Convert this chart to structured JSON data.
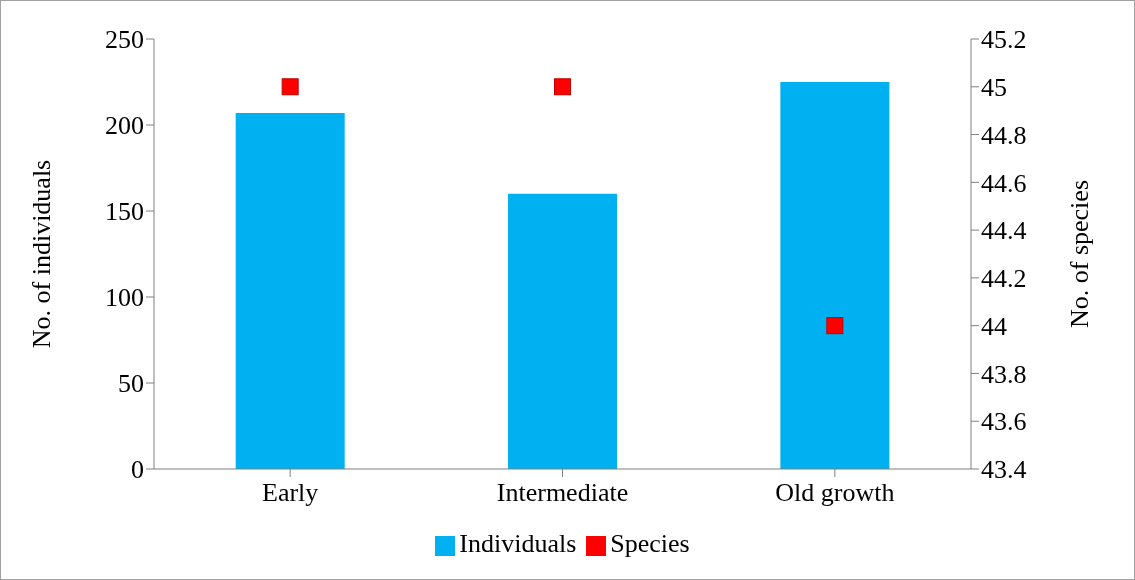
{
  "chart_data": {
    "type": "bar",
    "categories": [
      "Early",
      "Intermediate",
      "Old growth"
    ],
    "series": [
      {
        "name": "Individuals",
        "color": "#00b0f0",
        "values": [
          207,
          160,
          225
        ]
      },
      {
        "name": "Species",
        "type": "scatter",
        "axis": "y2",
        "color": "#ff0000",
        "values": [
          45,
          45,
          44
        ]
      }
    ],
    "ylabel": "No. of individuals",
    "y2label": "No. of species",
    "ylim": [
      0,
      250
    ],
    "yticks": [
      0,
      50,
      100,
      150,
      200,
      250
    ],
    "y2lim": [
      43.4,
      45.2
    ],
    "y2ticks": [
      43.4,
      43.6,
      43.8,
      44,
      44.2,
      44.4,
      44.6,
      44.8,
      45,
      45.2
    ],
    "grid": false,
    "legend": "bottom",
    "marker": "square"
  }
}
